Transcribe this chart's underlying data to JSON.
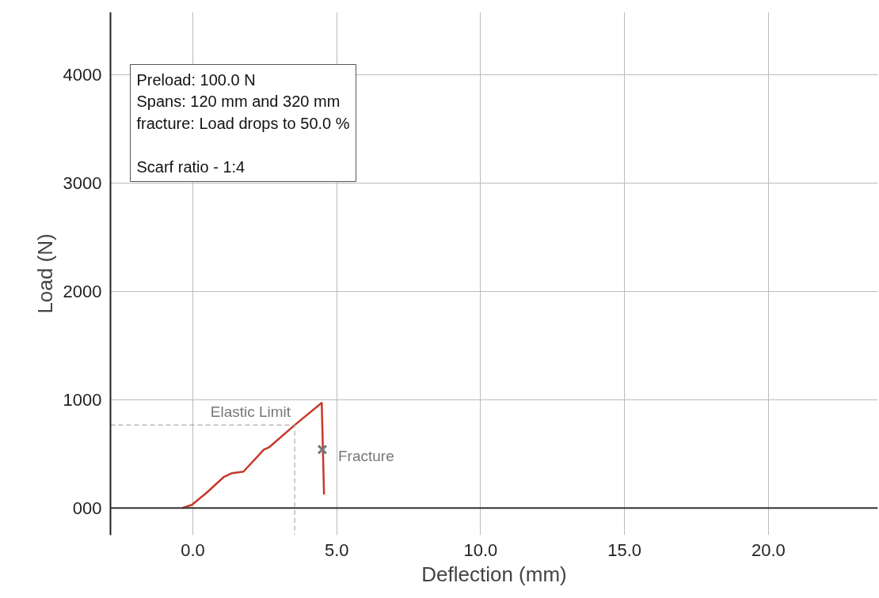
{
  "chart_data": {
    "type": "line",
    "xlabel": "Deflection (mm)",
    "ylabel": "Load (N)",
    "xlim": [
      -2.86,
      23.8
    ],
    "ylim": [
      -250,
      4577
    ],
    "xticks": [
      {
        "value": 0,
        "label": "0.0"
      },
      {
        "value": 5,
        "label": "5.0"
      },
      {
        "value": 10,
        "label": "10.0"
      },
      {
        "value": 15,
        "label": "15.0"
      },
      {
        "value": 20,
        "label": "20.0"
      }
    ],
    "yticks": [
      {
        "value": 0,
        "label": "000"
      },
      1000,
      2000,
      3000,
      4000
    ],
    "grid": true,
    "series": [
      {
        "color": "#c8382a",
        "x": [
          -0.36,
          -0.03,
          0.47,
          1.07,
          1.35,
          1.76,
          2.47,
          2.66,
          3.54,
          4.48,
          4.56
        ],
        "values": [
          0,
          29,
          139,
          285,
          321,
          336,
          540,
          562,
          766,
          971,
          124
        ]
      },
      {
        "color": "#aaaaaa",
        "line_style": "dashed",
        "x": [
          -2.86,
          3.54,
          3.54
        ],
        "values": [
          766,
          766,
          -250
        ]
      },
      {
        "type": "scatter",
        "marker": "cross",
        "color": "#777777",
        "x": [
          4.5
        ],
        "values": [
          540
        ]
      }
    ],
    "annotations": [
      "Preload: 100.0 N\nSpans: 120 mm and 320 mm\nfracture: Load drops to 50.0 %\n\nScarf ratio - 1:4",
      {
        "text": "Elastic Limit",
        "x": 3.54,
        "y": 766
      },
      {
        "text": "Fracture",
        "x": 4.5,
        "y": 540
      }
    ]
  }
}
